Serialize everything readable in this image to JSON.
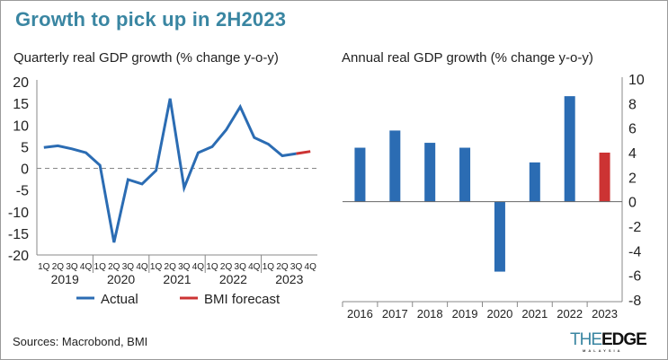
{
  "title": "Growth to pick up in 2H2023",
  "source": "Sources: Macrobond, BMI",
  "logo": {
    "the": "THE",
    "edge": "EDGE",
    "country": "MALAYSIA"
  },
  "colors": {
    "title": "#3a86a2",
    "actual": "#2b6cb3",
    "forecast": "#cc3333",
    "axis": "#888888"
  },
  "chart_data": [
    {
      "type": "line",
      "title": "Quarterly real GDP growth (% change y-o-y)",
      "ylim": [
        -20,
        20
      ],
      "yticks": [
        20,
        15,
        10,
        5,
        0,
        -5,
        -10,
        -15,
        -20
      ],
      "quarters": [
        "1Q",
        "2Q",
        "3Q",
        "4Q"
      ],
      "years": [
        "2019",
        "2020",
        "2021",
        "2022",
        "2023"
      ],
      "zero_line": "dashed",
      "legend": "bottom",
      "series": [
        {
          "name": "Actual",
          "color": "#2b6cb3",
          "x": [
            "1Q2019",
            "2Q2019",
            "3Q2019",
            "4Q2019",
            "1Q2020",
            "2Q2020",
            "3Q2020",
            "4Q2020",
            "1Q2021",
            "2Q2021",
            "3Q2021",
            "4Q2021",
            "1Q2022",
            "2Q2022",
            "3Q2022",
            "4Q2022",
            "1Q2023",
            "2Q2023",
            "3Q2023"
          ],
          "values": [
            4.8,
            5.2,
            4.5,
            3.6,
            0.7,
            -17.1,
            -2.6,
            -3.6,
            -0.5,
            16.1,
            -4.5,
            3.6,
            5.0,
            8.9,
            14.2,
            7.1,
            5.6,
            2.9,
            3.4
          ]
        },
        {
          "name": "BMI forecast",
          "color": "#cc3333",
          "x": [
            "3Q2023",
            "4Q2023"
          ],
          "values": [
            3.4,
            3.9
          ]
        }
      ]
    },
    {
      "type": "bar",
      "title": "Annual real GDP growth (% change y-o-y)",
      "ylim": [
        -8,
        10
      ],
      "yticks": [
        10,
        8,
        6,
        4,
        2,
        0,
        -2,
        -4,
        -6,
        -8
      ],
      "y_axis_side": "right",
      "categories": [
        "2016",
        "2017",
        "2018",
        "2019",
        "2020",
        "2021",
        "2022",
        "2023"
      ],
      "values": [
        4.4,
        5.8,
        4.8,
        4.4,
        -5.7,
        3.2,
        8.6,
        4.0
      ],
      "bar_colors": [
        "#2b6cb3",
        "#2b6cb3",
        "#2b6cb3",
        "#2b6cb3",
        "#2b6cb3",
        "#2b6cb3",
        "#2b6cb3",
        "#cc3333"
      ]
    }
  ]
}
